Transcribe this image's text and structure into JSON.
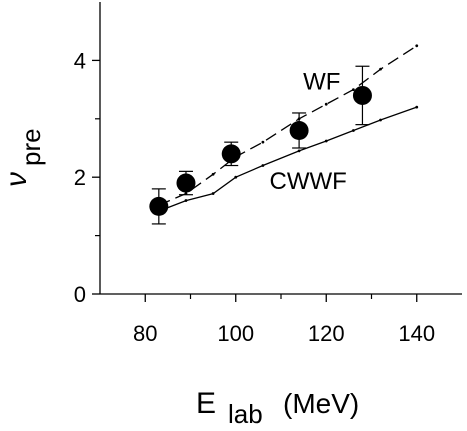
{
  "chart_data": {
    "type": "scatter",
    "xlabel": {
      "main": "E",
      "sub": "lab",
      "unit": "(MeV)"
    },
    "ylabel": {
      "main": "ν",
      "sub": "pre"
    },
    "xlim": [
      70,
      150
    ],
    "ylim": [
      0,
      5
    ],
    "x_ticks": [
      80,
      100,
      120,
      140
    ],
    "x_minor_ticks": [
      90,
      110,
      130
    ],
    "y_ticks": [
      0,
      2,
      4
    ],
    "y_minor_ticks": [
      1,
      3
    ],
    "grid": false,
    "experimental": {
      "x": [
        83,
        89,
        99,
        114,
        128
      ],
      "y": [
        1.5,
        1.9,
        2.4,
        2.8,
        3.4
      ],
      "err": [
        0.3,
        0.2,
        0.2,
        0.3,
        0.5
      ]
    },
    "series": [
      {
        "name": "WF",
        "style": "dashed",
        "x": [
          83,
          89,
          95,
          100,
          106,
          114,
          120,
          126,
          132,
          140
        ],
        "y": [
          1.52,
          1.72,
          2.05,
          2.35,
          2.6,
          3.0,
          3.25,
          3.5,
          3.85,
          4.25
        ]
      },
      {
        "name": "CWWF",
        "style": "solid",
        "x": [
          83,
          89,
          95,
          100,
          106,
          114,
          120,
          126,
          132,
          140
        ],
        "y": [
          1.42,
          1.6,
          1.72,
          2.0,
          2.2,
          2.45,
          2.62,
          2.8,
          2.98,
          3.2
        ]
      }
    ],
    "annotations": [
      {
        "text": "WF",
        "x": 119,
        "y": 3.5
      },
      {
        "text": "CWWF",
        "x": 116,
        "y": 1.8
      }
    ]
  }
}
